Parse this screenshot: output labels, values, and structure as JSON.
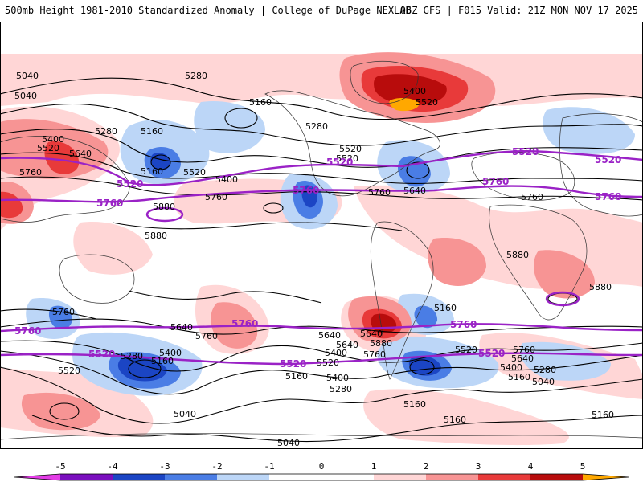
{
  "header": {
    "left": "500mb Height 1981-2010 Standardized Anomaly | College of DuPage NEXLAB",
    "right": "06Z GFS | F015 Valid: 21Z MON NOV 17 2025"
  },
  "colors": {
    "c_m5": "#e33ce6",
    "c_m4": "#7a0fbe",
    "c_m3": "#1b45c4",
    "c_m2": "#4a7de5",
    "c_m1": "#bcd6f7",
    "c_0": "#ffffff",
    "c_p1": "#ffd6d6",
    "c_p2": "#f79494",
    "c_p3": "#e83a3a",
    "c_p4": "#b80c0c",
    "c_p5": "#ffa800",
    "key_contour": "#9a22c6"
  },
  "contour_labels": {
    "c1": "5040",
    "c2": "5280",
    "c3": "5160",
    "c4": "5160",
    "c5": "5280",
    "c6": "5400",
    "c7": "5520",
    "c8": "5640",
    "c9": "5760",
    "c10": "5160",
    "c11": "5520",
    "c12": "5400",
    "c13": "5760",
    "c14": "5880",
    "c15": "5880",
    "c16": "5400",
    "c17": "5520",
    "c18": "5520",
    "c19": "5280",
    "c20": "5760",
    "c21": "5640",
    "c22": "5880",
    "c23": "5880",
    "c24": "5760",
    "c25": "5640",
    "c26": "5760",
    "c27": "5640",
    "c28": "5400",
    "c29": "5280",
    "c30": "5160",
    "c31": "5520",
    "c32": "5040",
    "c33": "5640",
    "c34": "5400",
    "c35": "5520",
    "c36": "5160",
    "c37": "5400",
    "c38": "5280",
    "c39": "5640",
    "c40": "5880",
    "c41": "5760",
    "c42": "5520",
    "c43": "5760",
    "c44": "5640",
    "c45": "5400",
    "c46": "5160",
    "c47": "5280",
    "c48": "5040",
    "c49": "5160",
    "c50": "5160",
    "c51": "5160",
    "c52": "5040",
    "c53": "5040",
    "c54": "5520",
    "c55": "5760",
    "c56": "5160"
  },
  "key_labels": {
    "k1": "5520",
    "k2": "5760",
    "k3": "5520",
    "k4": "5760",
    "k5": "5520",
    "k6": "5760",
    "k7": "5520",
    "k8": "5760",
    "k9": "5760",
    "k10": "5520",
    "k11": "5760",
    "k12": "5520",
    "k13": "5760",
    "k14": "5520"
  },
  "legend": {
    "ticks": [
      "-5",
      "-4",
      "-3",
      "-2",
      "-1",
      "0",
      "1",
      "2",
      "3",
      "4",
      "5"
    ]
  }
}
